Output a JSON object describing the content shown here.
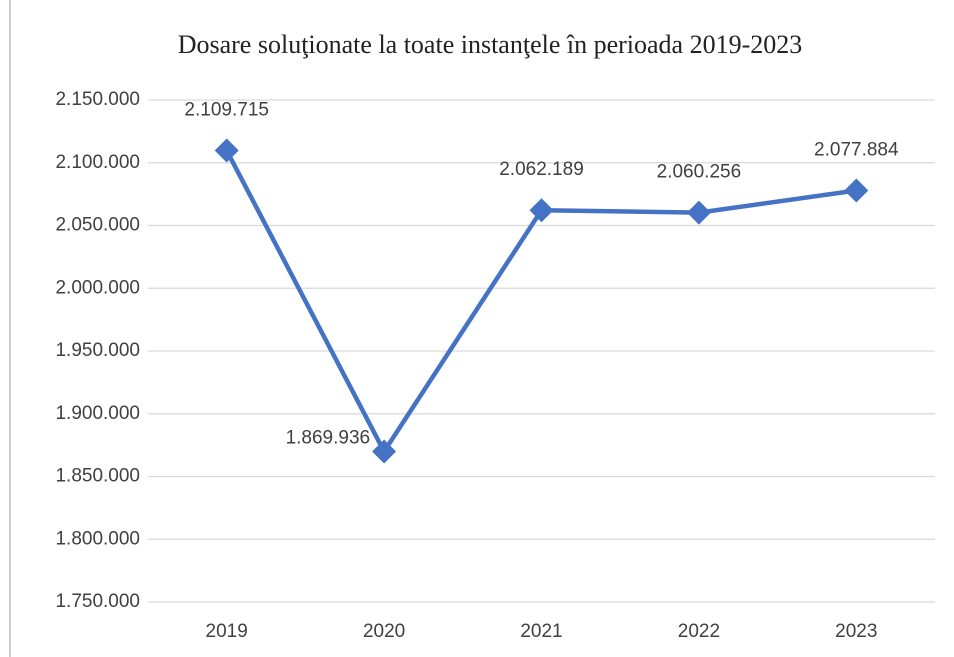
{
  "chart_data": {
    "type": "line",
    "title": "Dosare soluţionate la toate instanţele în perioada 2019-2023",
    "categories": [
      "2019",
      "2020",
      "2021",
      "2022",
      "2023"
    ],
    "series": [
      {
        "name": "Dosare soluţionate",
        "color": "#4472c4",
        "values": [
          2109715,
          1869936,
          2062189,
          2060256,
          2077884
        ],
        "value_labels": [
          "2.109.715",
          "1.869.936",
          "2.062.189",
          "2.060.256",
          "2.077.884"
        ]
      }
    ],
    "ylim": [
      1750000,
      2150000
    ],
    "yticks": [
      {
        "value": 1750000,
        "label": "1.750.000"
      },
      {
        "value": 1800000,
        "label": "1.800.000"
      },
      {
        "value": 1850000,
        "label": "1.850.000"
      },
      {
        "value": 1900000,
        "label": "1.900.000"
      },
      {
        "value": 1950000,
        "label": "1.950.000"
      },
      {
        "value": 2000000,
        "label": "2.000.000"
      },
      {
        "value": 2050000,
        "label": "2.050.000"
      },
      {
        "value": 2100000,
        "label": "2.100.000"
      },
      {
        "value": 2150000,
        "label": "2.150.000"
      }
    ],
    "grid": true
  }
}
